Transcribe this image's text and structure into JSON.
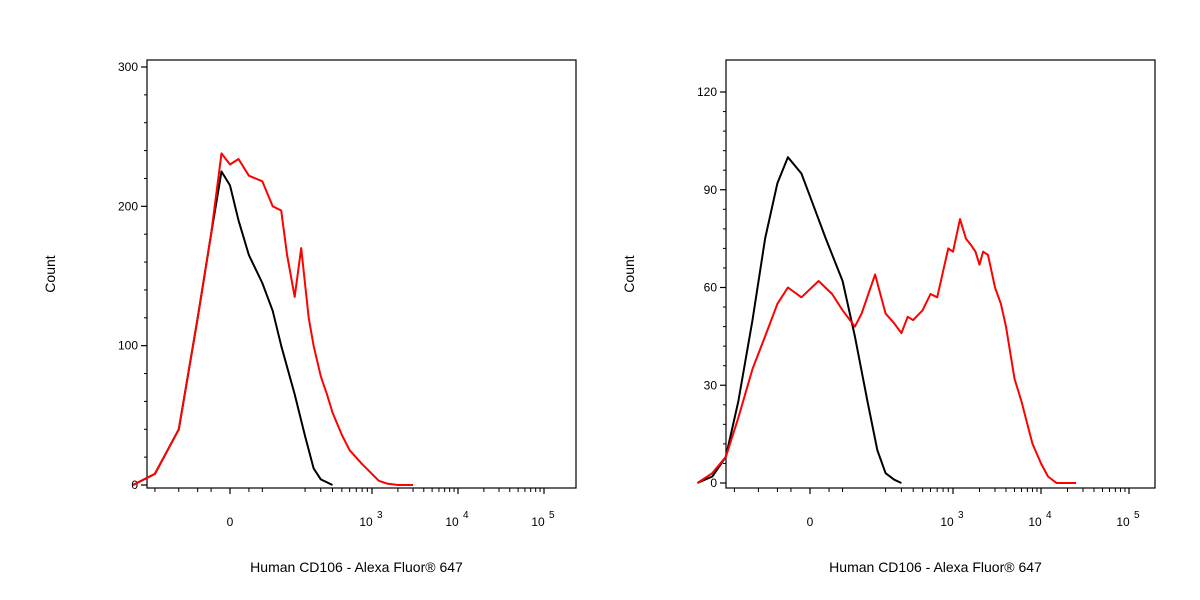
{
  "chart_data": [
    {
      "type": "line",
      "xlabel": "Human CD106 - Alexa Fluor® 647",
      "ylabel": "Count",
      "ylim": [
        0,
        300
      ],
      "y_ticks": [
        {
          "value": 0,
          "label": "0"
        },
        {
          "value": 100,
          "label": "100"
        },
        {
          "value": 200,
          "label": "200"
        },
        {
          "value": 300,
          "label": "300"
        }
      ],
      "x_scale": "biexponential",
      "x_ticks": [
        {
          "label": "0",
          "sup": ""
        },
        {
          "label": "10",
          "sup": "3"
        },
        {
          "label": "10",
          "sup": "4"
        },
        {
          "label": "10",
          "sup": "5"
        }
      ],
      "grid": false,
      "series": [
        {
          "color": "#000000",
          "x": [
            -350,
            -200,
            -100,
            -50,
            -25,
            -10,
            0,
            10,
            25,
            50,
            75,
            100,
            150,
            200,
            250,
            300,
            400
          ],
          "y": [
            0,
            8,
            40,
            120,
            180,
            225,
            215,
            190,
            165,
            145,
            125,
            100,
            65,
            35,
            12,
            4,
            0
          ]
        },
        {
          "color": "#ff0000",
          "x": [
            -350,
            -200,
            -100,
            -50,
            -25,
            -10,
            0,
            10,
            25,
            50,
            75,
            100,
            120,
            150,
            180,
            220,
            250,
            300,
            350,
            400,
            500,
            600,
            800,
            1000,
            1200,
            1500,
            2000,
            3000
          ],
          "y": [
            0,
            8,
            40,
            120,
            180,
            238,
            230,
            234,
            222,
            218,
            200,
            197,
            165,
            135,
            170,
            120,
            100,
            78,
            65,
            52,
            36,
            25,
            15,
            8,
            3,
            1,
            0,
            0
          ]
        }
      ]
    },
    {
      "type": "line",
      "xlabel": "Human CD106 - Alexa Fluor® 647",
      "ylabel": "Count",
      "ylim": [
        0,
        130
      ],
      "y_ticks": [
        {
          "value": 0,
          "label": "0"
        },
        {
          "value": 30,
          "label": "30"
        },
        {
          "value": 60,
          "label": "60"
        },
        {
          "value": 90,
          "label": "90"
        },
        {
          "value": 120,
          "label": "120"
        }
      ],
      "x_scale": "biexponential",
      "x_ticks": [
        {
          "label": "0",
          "sup": ""
        },
        {
          "label": "10",
          "sup": "3"
        },
        {
          "label": "10",
          "sup": "4"
        },
        {
          "label": "10",
          "sup": "5"
        }
      ],
      "grid": false,
      "series": [
        {
          "color": "#000000",
          "x": [
            -500,
            -350,
            -250,
            -180,
            -120,
            -80,
            -50,
            -30,
            -10,
            0,
            20,
            50,
            80,
            120,
            160,
            200,
            250,
            300
          ],
          "y": [
            0,
            2,
            8,
            25,
            50,
            75,
            92,
            100,
            95,
            88,
            75,
            62,
            45,
            25,
            10,
            3,
            1,
            0
          ]
        },
        {
          "color": "#ff0000",
          "x": [
            -500,
            -350,
            -250,
            -180,
            -120,
            -80,
            -50,
            -30,
            -10,
            10,
            30,
            50,
            80,
            100,
            150,
            200,
            250,
            300,
            350,
            400,
            500,
            600,
            700,
            800,
            900,
            1000,
            1200,
            1400,
            1600,
            1800,
            2000,
            2200,
            2500,
            3000,
            3500,
            4000,
            5000,
            6000,
            7000,
            8000,
            10000,
            12000,
            15000,
            20000,
            25000
          ],
          "y": [
            0,
            3,
            8,
            20,
            35,
            45,
            55,
            60,
            57,
            62,
            58,
            53,
            48,
            52,
            64,
            52,
            49,
            46,
            51,
            50,
            53,
            58,
            57,
            65,
            72,
            71,
            81,
            75,
            73,
            71,
            67,
            71,
            70,
            60,
            55,
            48,
            32,
            25,
            18,
            12,
            6,
            2,
            0,
            0,
            0
          ]
        }
      ]
    }
  ]
}
